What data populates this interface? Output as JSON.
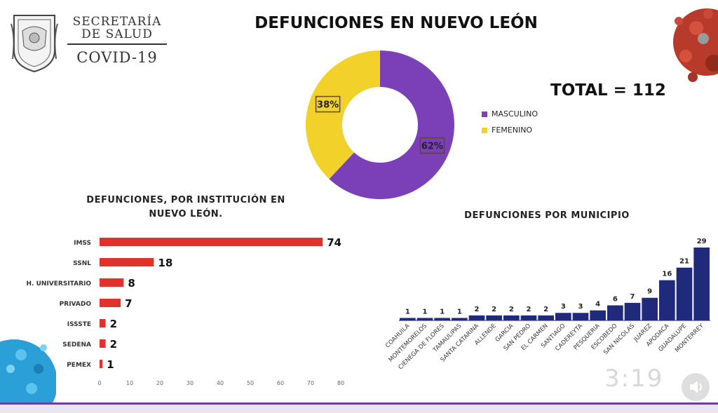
{
  "header": {
    "org_line1": "SECRETARÍA",
    "org_line2": "DE SALUD",
    "org_line3": "COVID-19",
    "title": "DEFUNCIONES EN NUEVO LEÓN",
    "total": "TOTAL = 112"
  },
  "player": {
    "timer": "3:19"
  },
  "colors": {
    "masculino": "#7b3fb8",
    "femenino": "#f2d12a",
    "institution_bar": "#e0322b",
    "municipio_bar": "#1f2a7a"
  },
  "chart_data": [
    {
      "type": "pie",
      "title": "DEFUNCIONES EN NUEVO LEÓN",
      "donut": true,
      "categories": [
        "MASCULINO",
        "FEMENINO"
      ],
      "values": [
        62,
        38
      ],
      "labels": [
        "62%",
        "38%"
      ],
      "legend": "right"
    },
    {
      "type": "bar",
      "orientation": "horizontal",
      "title": "DEFUNCIONES, POR INSTITUCIÓN EN NUEVO LEÓN.",
      "title_lines": [
        "DEFUNCIONES, POR INSTITUCIÓN EN",
        "NUEVO LEÓN."
      ],
      "categories": [
        "IMSS",
        "SSNL",
        "H. UNIVERSITARIO",
        "PRIVADO",
        "ISSSTE",
        "SEDENA",
        "PEMEX"
      ],
      "values": [
        74,
        18,
        8,
        7,
        2,
        2,
        1
      ],
      "xlim": [
        0,
        80
      ],
      "xticks": [
        0,
        10,
        20,
        30,
        40,
        50,
        60,
        70,
        80
      ]
    },
    {
      "type": "bar",
      "orientation": "vertical",
      "title": "DEFUNCIONES POR MUNICIPIO",
      "categories": [
        "COAHUILA",
        "MONTEMORELOS",
        "CIENEGA DE FLORES",
        "TAMAULIPAS",
        "SANTA CATARINA",
        "ALLENDE",
        "GARCIA",
        "SAN PEDRO",
        "EL CARMEN",
        "SANTIAGO",
        "CADEREYTA",
        "PESQUERIA",
        "ESCOBEDO",
        "SAN NICOLAS",
        "JUAREZ",
        "APODACA",
        "GUADALUPE",
        "MONTERREY"
      ],
      "values": [
        1,
        1,
        1,
        1,
        2,
        2,
        2,
        2,
        2,
        3,
        3,
        4,
        6,
        7,
        9,
        16,
        21,
        29
      ],
      "ylim": [
        0,
        29
      ]
    }
  ]
}
